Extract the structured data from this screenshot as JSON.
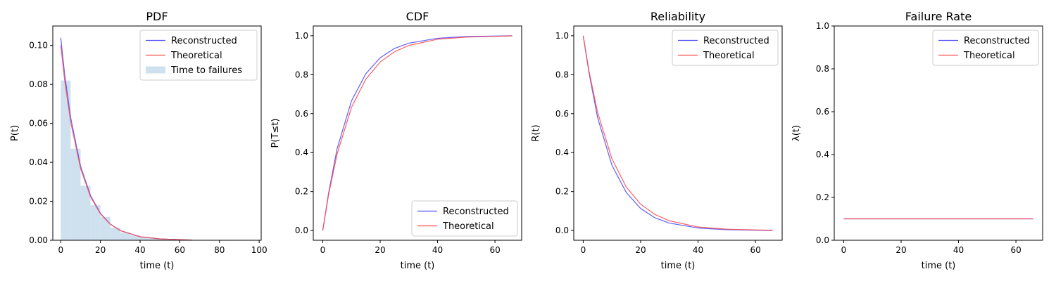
{
  "chart_data": [
    {
      "type": "line",
      "title": "PDF",
      "xlabel": "time (t)",
      "ylabel": "P(t)",
      "xlim": [
        -4,
        101
      ],
      "ylim": [
        0,
        0.11
      ],
      "xticks": [
        "0",
        "20",
        "40",
        "60",
        "80",
        "100"
      ],
      "yticks": [
        "0.00",
        "0.02",
        "0.04",
        "0.06",
        "0.08",
        "0.10"
      ],
      "legend": "top-right",
      "series": [
        {
          "name": "Reconstructed",
          "color": "#4d4dff",
          "x": [
            0,
            2,
            5,
            10,
            15,
            20,
            25,
            30,
            40,
            50,
            66
          ],
          "y": [
            0.104,
            0.085,
            0.063,
            0.038,
            0.023,
            0.0138,
            0.0083,
            0.005,
            0.0018,
            0.0007,
            0.0001
          ]
        },
        {
          "name": "Theoretical",
          "color": "#ff4d4d",
          "x": [
            0,
            2,
            5,
            10,
            15,
            20,
            25,
            30,
            40,
            50,
            66
          ],
          "y": [
            0.1,
            0.0819,
            0.0607,
            0.0368,
            0.0223,
            0.0135,
            0.0082,
            0.005,
            0.0018,
            0.0007,
            0.0001
          ]
        }
      ],
      "histogram": {
        "name": "Time to failures",
        "color": "#cfe1ef",
        "bins": [
          {
            "x0": 0,
            "x1": 5,
            "y": 0.082
          },
          {
            "x0": 5,
            "x1": 10,
            "y": 0.047
          },
          {
            "x0": 10,
            "x1": 15,
            "y": 0.028
          },
          {
            "x0": 15,
            "x1": 20,
            "y": 0.018
          },
          {
            "x0": 20,
            "x1": 25,
            "y": 0.012
          },
          {
            "x0": 25,
            "x1": 30,
            "y": 0.0065
          },
          {
            "x0": 30,
            "x1": 35,
            "y": 0.004
          },
          {
            "x0": 35,
            "x1": 40,
            "y": 0.0025
          },
          {
            "x0": 40,
            "x1": 45,
            "y": 0.0015
          },
          {
            "x0": 45,
            "x1": 50,
            "y": 0.0009
          },
          {
            "x0": 50,
            "x1": 55,
            "y": 0.0005
          },
          {
            "x0": 55,
            "x1": 60,
            "y": 0.0003
          },
          {
            "x0": 60,
            "x1": 65,
            "y": 0.0002
          },
          {
            "x0": 65,
            "x1": 70,
            "y": 0.0001
          }
        ]
      }
    },
    {
      "type": "line",
      "title": "CDF",
      "xlabel": "time (t)",
      "ylabel": "P(T≤t)",
      "xlim": [
        -3.3,
        69.3
      ],
      "ylim": [
        -0.05,
        1.05
      ],
      "xticks": [
        "0",
        "20",
        "40",
        "60"
      ],
      "yticks": [
        "0.0",
        "0.2",
        "0.4",
        "0.6",
        "0.8",
        "1.0"
      ],
      "legend": "bottom-right",
      "series": [
        {
          "name": "Reconstructed",
          "color": "#4d4dff",
          "x": [
            0,
            2,
            5,
            10,
            15,
            20,
            25,
            30,
            40,
            50,
            66
          ],
          "y": [
            0,
            0.19,
            0.42,
            0.665,
            0.805,
            0.887,
            0.935,
            0.962,
            0.987,
            0.996,
            1.0
          ]
        },
        {
          "name": "Theoretical",
          "color": "#ff4d4d",
          "x": [
            0,
            2,
            5,
            10,
            15,
            20,
            25,
            30,
            40,
            50,
            66
          ],
          "y": [
            0,
            0.181,
            0.393,
            0.632,
            0.777,
            0.865,
            0.918,
            0.95,
            0.982,
            0.993,
            0.999
          ]
        }
      ]
    },
    {
      "type": "line",
      "title": "Reliability",
      "xlabel": "time (t)",
      "ylabel": "R(t)",
      "xlim": [
        -3.3,
        69.3
      ],
      "ylim": [
        -0.05,
        1.05
      ],
      "xticks": [
        "0",
        "20",
        "40",
        "60"
      ],
      "yticks": [
        "0.0",
        "0.2",
        "0.4",
        "0.6",
        "0.8",
        "1.0"
      ],
      "legend": "top-right",
      "series": [
        {
          "name": "Reconstructed",
          "color": "#4d4dff",
          "x": [
            0,
            2,
            5,
            10,
            15,
            20,
            25,
            30,
            40,
            50,
            66
          ],
          "y": [
            1.0,
            0.81,
            0.58,
            0.335,
            0.195,
            0.113,
            0.065,
            0.038,
            0.013,
            0.004,
            0.0
          ]
        },
        {
          "name": "Theoretical",
          "color": "#ff4d4d",
          "x": [
            0,
            2,
            5,
            10,
            15,
            20,
            25,
            30,
            40,
            50,
            66
          ],
          "y": [
            1.0,
            0.819,
            0.607,
            0.368,
            0.223,
            0.135,
            0.082,
            0.05,
            0.018,
            0.007,
            0.001
          ]
        }
      ]
    },
    {
      "type": "line",
      "title": "Failure Rate",
      "xlabel": "time (t)",
      "ylabel": "λ(t)",
      "xlim": [
        -3.3,
        69.3
      ],
      "ylim": [
        0,
        1.0
      ],
      "xticks": [
        "0",
        "20",
        "40",
        "60"
      ],
      "yticks": [
        "0.0",
        "0.2",
        "0.4",
        "0.6",
        "0.8",
        "1.0"
      ],
      "legend": "top-right",
      "series": [
        {
          "name": "Reconstructed",
          "color": "#4d4dff",
          "x": [
            0,
            66
          ],
          "y": [
            0.1,
            0.1
          ]
        },
        {
          "name": "Theoretical",
          "color": "#ff4d4d",
          "x": [
            0,
            66
          ],
          "y": [
            0.1,
            0.1
          ]
        }
      ]
    }
  ]
}
